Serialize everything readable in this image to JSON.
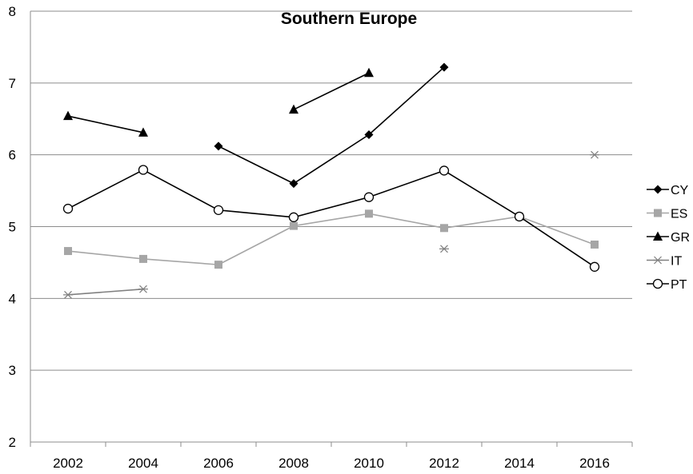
{
  "chart_data": {
    "type": "line",
    "title": "Southern Europe",
    "xlabel": "",
    "ylabel": "",
    "categories": [
      "2002",
      "2004",
      "2006",
      "2008",
      "2010",
      "2012",
      "2014",
      "2016"
    ],
    "ylim": [
      2,
      8
    ],
    "yticks": [
      2,
      3,
      4,
      5,
      6,
      7,
      8
    ],
    "grid": "horizontal",
    "legend_position": "right",
    "series": [
      {
        "name": "CY",
        "color": "#000000",
        "marker": "diamond",
        "line": true,
        "values": [
          null,
          null,
          6.12,
          5.6,
          6.28,
          7.22,
          null,
          null
        ]
      },
      {
        "name": "ES",
        "color": "#a6a6a6",
        "marker": "square",
        "line": true,
        "values": [
          4.66,
          4.55,
          4.47,
          5.01,
          5.18,
          4.98,
          5.14,
          4.75
        ]
      },
      {
        "name": "GR",
        "color": "#000000",
        "marker": "triangle",
        "line": true,
        "values": [
          6.54,
          6.31,
          null,
          6.63,
          7.14,
          null,
          null,
          null
        ]
      },
      {
        "name": "IT",
        "color": "#808080",
        "marker": "star",
        "line": true,
        "values": [
          4.05,
          4.13,
          null,
          null,
          null,
          4.69,
          null,
          6.0
        ]
      },
      {
        "name": "PT",
        "color": "#000000",
        "marker": "circle",
        "line": true,
        "values": [
          5.25,
          5.79,
          5.23,
          5.13,
          5.41,
          5.78,
          5.14,
          4.44
        ]
      }
    ]
  }
}
